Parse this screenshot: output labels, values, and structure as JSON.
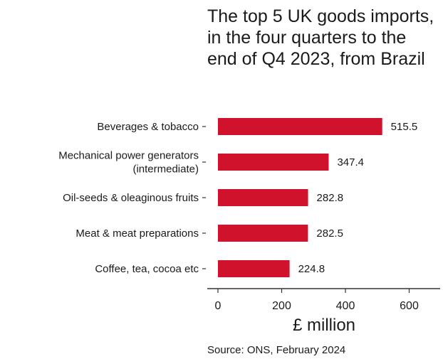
{
  "chart_data": {
    "type": "bar",
    "orientation": "horizontal",
    "title": "The top 5 UK goods imports, in the four quarters to the end of Q4 2023, from Brazil",
    "categories": [
      [
        "Beverages & tobacco"
      ],
      [
        "Mechanical power generators",
        "(intermediate)"
      ],
      [
        "Oil-seeds & oleaginous fruits"
      ],
      [
        "Meat & meat preparations"
      ],
      [
        "Coffee, tea, cocoa etc"
      ]
    ],
    "values": [
      515.5,
      347.4,
      282.8,
      282.5,
      224.8
    ],
    "data_labels": [
      "515.5",
      "347.4",
      "282.8",
      "282.5",
      "224.8"
    ],
    "xlabel": "£ million",
    "xlim": [
      0,
      700
    ],
    "xticks": [
      0,
      200,
      400,
      600
    ],
    "xtick_labels": [
      "0",
      "200",
      "400",
      "600"
    ],
    "bar_color": "#d0122c",
    "grid": false,
    "legend": "none",
    "source": "Source: ONS, February 2024"
  }
}
